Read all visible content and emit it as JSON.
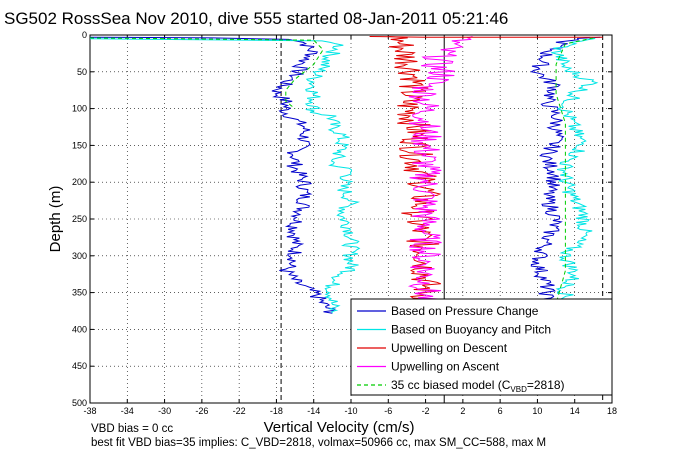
{
  "chart_data": {
    "type": "line",
    "title": "SG502 RossSea Nov 2010, dive 555 started 08-Jan-2011 05:21:46",
    "xlabel": "Vertical Velocity (cm/s)",
    "ylabel": "Depth (m)",
    "xlim": [
      -38,
      18
    ],
    "ylim": [
      0,
      500
    ],
    "y_reversed": true,
    "grid": true,
    "x_ticks": [
      "-38",
      "-34",
      "-30",
      "-26",
      "-22",
      "-18",
      "-14",
      "-10",
      "-6",
      "-2",
      "2",
      "6",
      "10",
      "14",
      "18"
    ],
    "y_ticks": [
      "0",
      "50",
      "100",
      "150",
      "200",
      "250",
      "300",
      "350",
      "400",
      "450",
      "500"
    ],
    "legend_position": "bottom-right",
    "legend": [
      {
        "label": "Based on Pressure Change",
        "color": "#0000cc",
        "style": "solid"
      },
      {
        "label": "Based on Buoyancy and Pitch",
        "color": "#00e5e5",
        "style": "solid"
      },
      {
        "label": "Upwelling on Descent",
        "color": "#e00000",
        "style": "solid"
      },
      {
        "label": "Upwelling on Ascent",
        "color": "#ff00ff",
        "style": "solid"
      },
      {
        "label_main": "35 cc biased model (C",
        "label_sub": "VBD",
        "label_tail": "=2818)",
        "color": "#00cc00",
        "style": "dashed"
      }
    ],
    "reference_lines": [
      {
        "x": -17.5,
        "style": "dashed",
        "color": "#000000"
      },
      {
        "x": 0,
        "style": "solid",
        "color": "#000000"
      },
      {
        "x": 17,
        "style": "dashed",
        "color": "#000000"
      }
    ],
    "series": [
      {
        "id": "pressure_descent",
        "color": "#0000cc",
        "points": [
          [
            -38,
            3
          ],
          [
            -25,
            4
          ],
          [
            -16,
            6
          ],
          [
            -15,
            10
          ],
          [
            -14,
            25
          ],
          [
            -15,
            35
          ],
          [
            -16,
            55
          ],
          [
            -17,
            65
          ],
          [
            -18,
            78
          ],
          [
            -17,
            90
          ],
          [
            -17,
            105
          ],
          [
            -16,
            115
          ],
          [
            -15,
            125
          ],
          [
            -15,
            145
          ],
          [
            -16,
            160
          ],
          [
            -16,
            180
          ],
          [
            -15,
            200
          ],
          [
            -15,
            230
          ],
          [
            -16,
            260
          ],
          [
            -16,
            290
          ],
          [
            -16,
            305
          ],
          [
            -17,
            320
          ],
          [
            -16,
            335
          ],
          [
            -14,
            350
          ],
          [
            -13,
            365
          ],
          [
            -12,
            378
          ]
        ]
      },
      {
        "id": "buoyancy_descent",
        "color": "#00e5e5",
        "points": [
          [
            -38,
            5
          ],
          [
            -14,
            8
          ],
          [
            -11,
            12
          ],
          [
            -12,
            25
          ],
          [
            -14,
            60
          ],
          [
            -14,
            90
          ],
          [
            -14,
            105
          ],
          [
            -12,
            110
          ],
          [
            -12,
            125
          ],
          [
            -11,
            135
          ],
          [
            -11,
            155
          ],
          [
            -12,
            175
          ],
          [
            -10,
            185
          ],
          [
            -11,
            205
          ],
          [
            -10,
            225
          ],
          [
            -11,
            245
          ],
          [
            -10,
            265
          ],
          [
            -10,
            290
          ],
          [
            -10,
            305
          ],
          [
            -10,
            320
          ],
          [
            -12,
            335
          ],
          [
            -12,
            360
          ],
          [
            -12,
            378
          ]
        ]
      },
      {
        "id": "model_descent",
        "color": "#00cc00",
        "dashed": true,
        "points": [
          [
            -38,
            4
          ],
          [
            -14,
            7
          ],
          [
            -13,
            20
          ],
          [
            -14,
            40
          ],
          [
            -16,
            60
          ],
          [
            -17,
            75
          ],
          [
            -17,
            90
          ],
          [
            -16,
            100
          ]
        ]
      },
      {
        "id": "upwelling_descent",
        "color": "#e00000",
        "points": [
          [
            -5,
            2
          ],
          [
            -4,
            30
          ],
          [
            -3,
            60
          ],
          [
            -4,
            90
          ],
          [
            -3,
            130
          ],
          [
            -3,
            170
          ],
          [
            -2,
            210
          ],
          [
            -3,
            250
          ],
          [
            -2,
            300
          ],
          [
            -2,
            340
          ],
          [
            -2,
            365
          ]
        ]
      },
      {
        "id": "upwelling_ascent",
        "color": "#ff00ff",
        "points": [
          [
            2,
            2
          ],
          [
            0,
            20
          ],
          [
            -1,
            40
          ],
          [
            0,
            55
          ],
          [
            -2,
            70
          ],
          [
            -2,
            120
          ],
          [
            -2,
            180
          ],
          [
            -2,
            240
          ],
          [
            -2,
            300
          ],
          [
            -2,
            365
          ]
        ]
      },
      {
        "id": "pressure_ascent",
        "color": "#0000cc",
        "points": [
          [
            16,
            3
          ],
          [
            13,
            8
          ],
          [
            11,
            25
          ],
          [
            10,
            50
          ],
          [
            12,
            70
          ],
          [
            11,
            90
          ],
          [
            12,
            110
          ],
          [
            12,
            140
          ],
          [
            11,
            170
          ],
          [
            12,
            190
          ],
          [
            11,
            220
          ],
          [
            12,
            250
          ],
          [
            11,
            280
          ],
          [
            10,
            310
          ],
          [
            11,
            340
          ],
          [
            11,
            365
          ]
        ]
      },
      {
        "id": "buoyancy_ascent",
        "color": "#00e5e5",
        "points": [
          [
            16,
            3
          ],
          [
            14,
            10
          ],
          [
            12,
            20
          ],
          [
            13,
            45
          ],
          [
            16,
            65
          ],
          [
            14,
            80
          ],
          [
            13,
            100
          ],
          [
            14,
            130
          ],
          [
            15,
            150
          ],
          [
            13,
            175
          ],
          [
            13,
            200
          ],
          [
            14,
            225
          ],
          [
            15,
            245
          ],
          [
            15,
            270
          ],
          [
            13,
            300
          ],
          [
            14,
            325
          ],
          [
            13,
            345
          ],
          [
            13,
            365
          ]
        ]
      },
      {
        "id": "model_ascent",
        "color": "#00cc00",
        "dashed": true,
        "points": [
          [
            16,
            4
          ],
          [
            13,
            12
          ],
          [
            12,
            40
          ],
          [
            12,
            80
          ],
          [
            13,
            120
          ],
          [
            13,
            160
          ],
          [
            13,
            200
          ],
          [
            13,
            260
          ],
          [
            13,
            320
          ],
          [
            12,
            365
          ]
        ]
      },
      {
        "id": "surface_red",
        "color": "#e00000",
        "points": [
          [
            -8,
            2
          ],
          [
            -2,
            3
          ],
          [
            4,
            3
          ],
          [
            17,
            3
          ]
        ]
      }
    ],
    "footer_lines": [
      "VBD bias = 0 cc",
      "best fit VBD bias=35 implies: C_VBD=2818, volmax=50966 cc, max SM_CC=588, max M"
    ]
  }
}
